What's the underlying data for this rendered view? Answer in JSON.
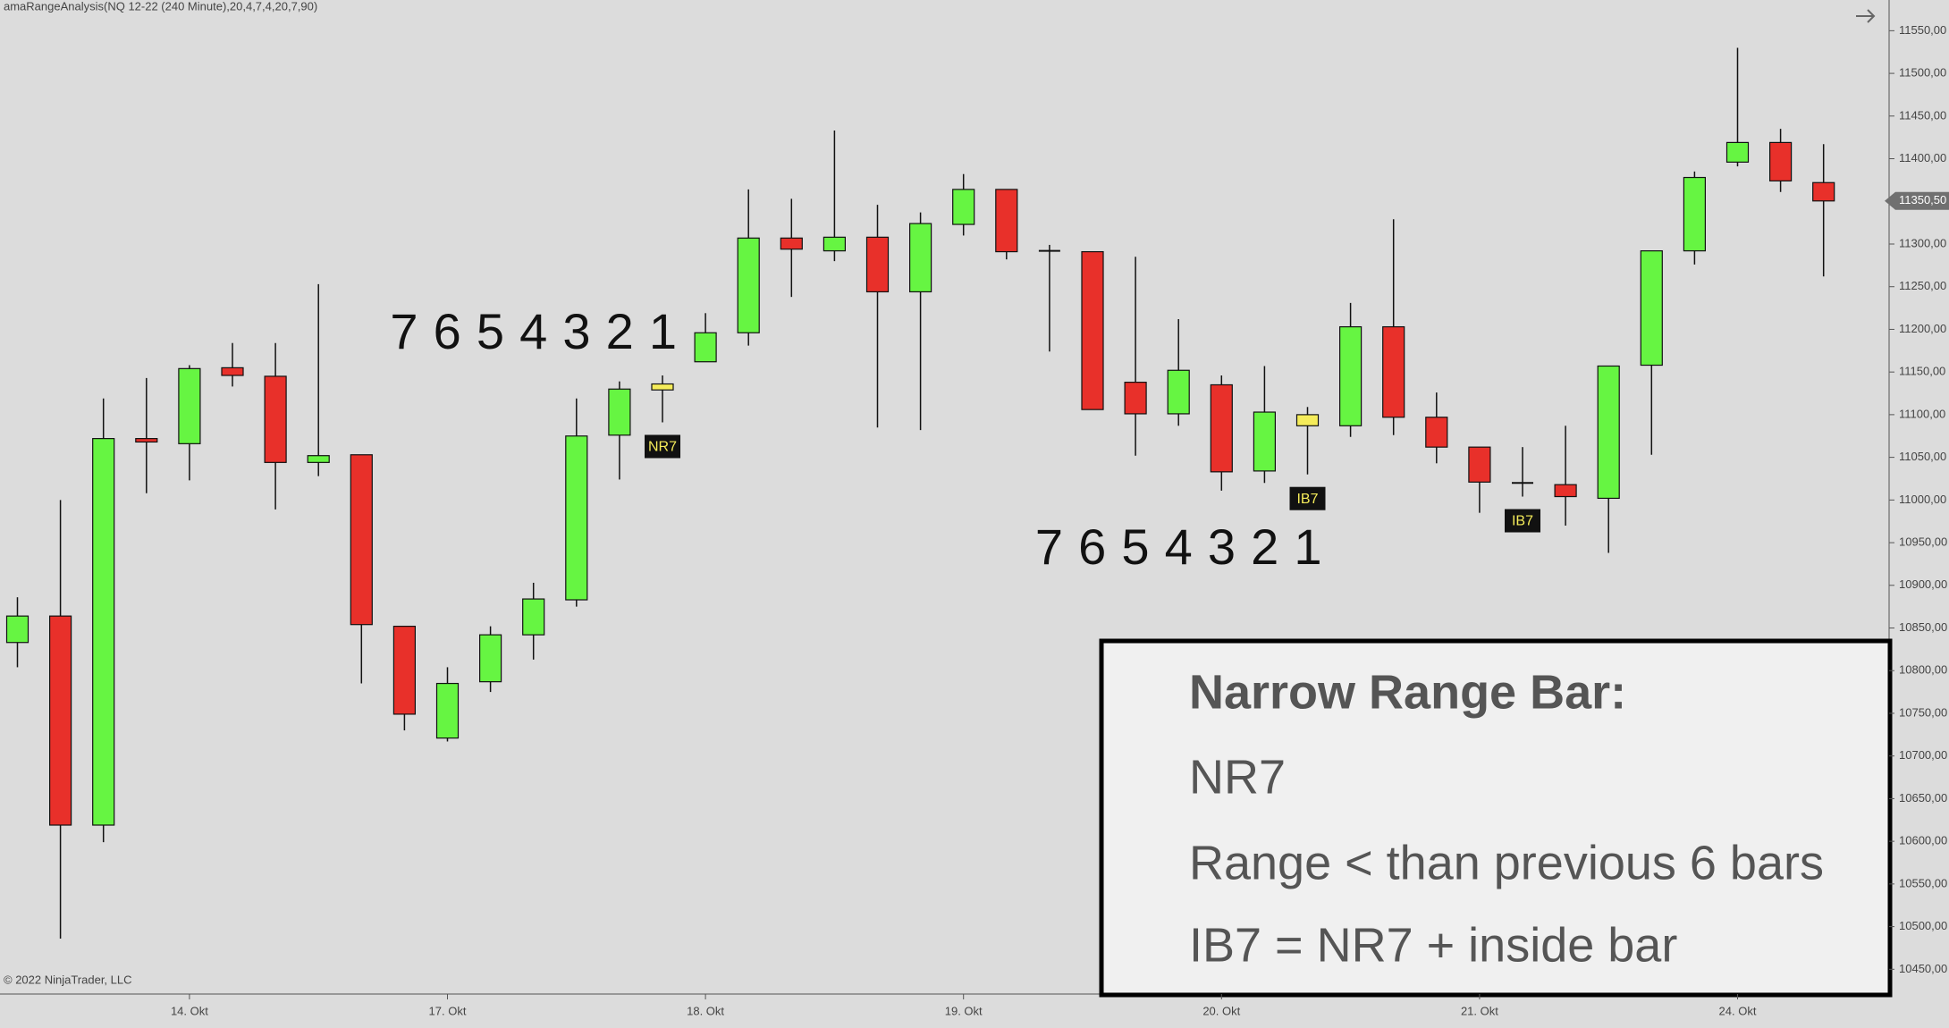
{
  "chart_data": {
    "type": "candlestick",
    "header": "amaRangeAnalysis(NQ 12-22 (240 Minute),20,4,7,4,20,7,90)",
    "copyright": "© 2022 NinjaTrader, LLC",
    "categories": [
      null,
      null,
      null,
      null,
      "14. Okt",
      null,
      null,
      null,
      null,
      null,
      "17. Okt",
      null,
      null,
      null,
      null,
      null,
      "18. Okt",
      null,
      null,
      null,
      null,
      null,
      "19. Okt",
      null,
      null,
      null,
      null,
      null,
      "20. Okt",
      null,
      null,
      null,
      null,
      null,
      "21. Okt",
      null,
      null,
      null,
      null,
      null,
      "24. Okt",
      null,
      null
    ],
    "open": [
      10833,
      10864,
      10619,
      11072,
      11066,
      11155,
      11145,
      11044,
      11053,
      10852,
      10721,
      10787,
      10842,
      10883,
      11076,
      11129,
      11162,
      11196,
      11307,
      11292,
      11308,
      11244,
      11323,
      11364,
      11292,
      11291,
      11138,
      11101,
      11135,
      11034,
      11087,
      11087,
      11203,
      11097,
      11062,
      11020,
      11018,
      11002,
      11158,
      11292,
      11396,
      11419,
      11372
    ],
    "high": [
      10886,
      11000,
      11119,
      11143,
      11158,
      11184,
      11184,
      11253,
      11053,
      10852,
      10804,
      10852,
      10903,
      11119,
      11139,
      11146,
      11219,
      11364,
      11353,
      11433,
      11346,
      11337,
      11382,
      11364,
      11299,
      11291,
      11285,
      11212,
      11146,
      11157,
      11109,
      11231,
      11329,
      11126,
      11062,
      11062,
      11087,
      11157,
      11292,
      11385,
      11530,
      11435,
      11417
    ],
    "low": [
      10804,
      10486,
      10599,
      11008,
      11023,
      11133,
      10989,
      11028,
      10785,
      10730,
      10717,
      10775,
      10813,
      10875,
      11024,
      11091,
      11162,
      11181,
      11238,
      11280,
      11085,
      11082,
      11310,
      11282,
      11174,
      11106,
      11052,
      11087,
      11011,
      11020,
      11030,
      11074,
      11076,
      11043,
      10985,
      11004,
      10970,
      10938,
      11053,
      11276,
      11391,
      11361,
      11262
    ],
    "close": [
      10864,
      10619,
      11072,
      11068,
      11154,
      11146,
      11044,
      11052,
      10854,
      10749,
      10785,
      10842,
      10884,
      11075,
      11130,
      11136,
      11196,
      11307,
      11294,
      11308,
      11244,
      11324,
      11364,
      11291,
      11292,
      11106,
      11101,
      11152,
      11033,
      11103,
      11100,
      11203,
      11097,
      11062,
      11021,
      11020,
      11004,
      11157,
      11292,
      11378,
      11419,
      11374,
      11350.5
    ],
    "signals": [
      null,
      null,
      null,
      null,
      null,
      null,
      null,
      null,
      null,
      null,
      null,
      null,
      null,
      null,
      null,
      "NR7",
      null,
      null,
      null,
      null,
      null,
      null,
      null,
      null,
      null,
      null,
      null,
      null,
      null,
      null,
      "IB7",
      null,
      null,
      null,
      null,
      "IB7",
      null,
      null,
      null,
      null,
      null,
      null,
      null
    ],
    "up_color": "#66f542",
    "down_color": "#e8302a",
    "highlight_color": "#f5ec5a",
    "ylim": [
      10421,
      11586
    ],
    "yticks": [
      {
        "value": 10450,
        "label": "10450,00"
      },
      {
        "value": 10500,
        "label": "10500,00"
      },
      {
        "value": 10550,
        "label": "10550,00"
      },
      {
        "value": 10600,
        "label": "10600,00"
      },
      {
        "value": 10650,
        "label": "10650,00"
      },
      {
        "value": 10700,
        "label": "10700,00"
      },
      {
        "value": 10750,
        "label": "10750,00"
      },
      {
        "value": 10800,
        "label": "10800,00"
      },
      {
        "value": 10850,
        "label": "10850,00"
      },
      {
        "value": 10900,
        "label": "10900,00"
      },
      {
        "value": 10950,
        "label": "10950,00"
      },
      {
        "value": 11000,
        "label": "11000,00"
      },
      {
        "value": 11050,
        "label": "11050,00"
      },
      {
        "value": 11100,
        "label": "11100,00"
      },
      {
        "value": 11150,
        "label": "11150,00"
      },
      {
        "value": 11200,
        "label": "11200,00"
      },
      {
        "value": 11250,
        "label": "11250,00"
      },
      {
        "value": 11300,
        "label": "11300,00"
      },
      {
        "value": 11350,
        "label": "11350,00"
      },
      {
        "value": 11400,
        "label": "11400,00"
      },
      {
        "value": 11450,
        "label": "11450,00"
      },
      {
        "value": 11500,
        "label": "11500,00"
      },
      {
        "value": 11550,
        "label": "11550,00"
      }
    ],
    "last_price": {
      "value": 11350.5,
      "label": "11350,50"
    },
    "annotations": [
      {
        "text": "7 6 5 4 3 2 1"
      },
      {
        "text": "7 6 5 4 3 2 1"
      }
    ],
    "note": {
      "title": "Narrow Range Bar:",
      "lines": [
        "NR7",
        "Range < than previous 6 bars",
        "IB7 = NR7 + inside bar"
      ]
    }
  }
}
